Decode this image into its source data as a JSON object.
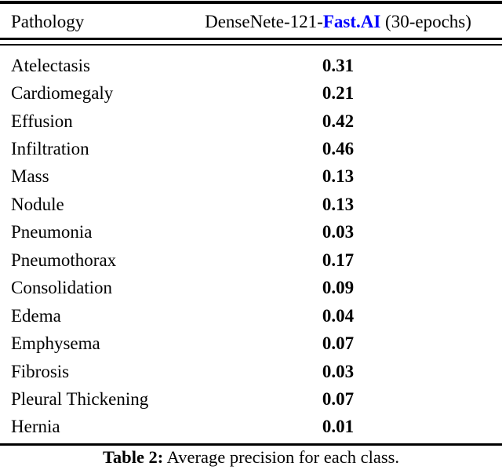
{
  "table": {
    "header": {
      "col1": "Pathology",
      "col2_prefix": "DenseNete-121-",
      "col2_highlight": "Fast.AI",
      "col2_suffix": " (30-epochs)"
    },
    "rows": [
      {
        "label": "Atelectasis",
        "value": "0.31"
      },
      {
        "label": "Cardiomegaly",
        "value": "0.21"
      },
      {
        "label": "Effusion",
        "value": "0.42"
      },
      {
        "label": "Infiltration",
        "value": "0.46"
      },
      {
        "label": "Mass",
        "value": "0.13"
      },
      {
        "label": "Nodule",
        "value": "0.13"
      },
      {
        "label": "Pneumonia",
        "value": "0.03"
      },
      {
        "label": "Pneumothorax",
        "value": "0.17"
      },
      {
        "label": "Consolidation",
        "value": "0.09"
      },
      {
        "label": "Edema",
        "value": "0.04"
      },
      {
        "label": "Emphysema",
        "value": "0.07"
      },
      {
        "label": "Fibrosis",
        "value": "0.03"
      },
      {
        "label": "Pleural Thickening",
        "value": "0.07"
      },
      {
        "label": "Hernia",
        "value": "0.01"
      }
    ],
    "caption": {
      "label": "Table 2:",
      "text": " Average precision for each class."
    },
    "colors": {
      "highlight": "#0000FF",
      "text": "#000000",
      "rule": "#000000"
    }
  }
}
